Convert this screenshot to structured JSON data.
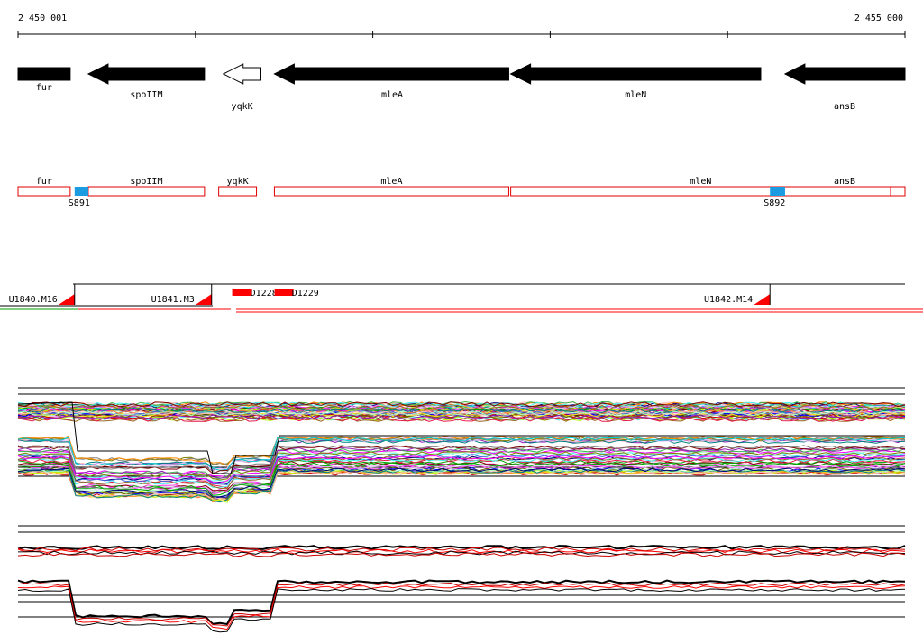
{
  "coordinates": {
    "start": "2 450 001",
    "end": "2 455 000",
    "start_bp": 2450001,
    "end_bp": 2455000
  },
  "genes": [
    {
      "name": "fur",
      "start": 2450001,
      "end": 2450295,
      "strand": "none"
    },
    {
      "name": "spoIIM",
      "start": 2450397,
      "end": 2451052,
      "strand": "-"
    },
    {
      "name": "yqkK",
      "start": 2451158,
      "end": 2451370,
      "strand": "-",
      "outline": true
    },
    {
      "name": "mleA",
      "start": 2451446,
      "end": 2452767,
      "strand": "-"
    },
    {
      "name": "mleN",
      "start": 2452778,
      "end": 2454187,
      "strand": "-"
    },
    {
      "name": "ansB",
      "start": 2454324,
      "end": 2455000,
      "strand": "-"
    }
  ],
  "annotation_boxes": [
    {
      "name": "fur",
      "start": 2450001,
      "end": 2450295
    },
    {
      "name": "spoIIM",
      "start": 2450397,
      "end": 2451052
    },
    {
      "name": "yqkK",
      "start": 2451132,
      "end": 2451345
    },
    {
      "name": "mleA",
      "start": 2451446,
      "end": 2452767
    },
    {
      "name": "mleN",
      "start": 2452778,
      "end": 2454919
    },
    {
      "name": "ansB",
      "start": 2454919,
      "end": 2455000
    }
  ],
  "sites": [
    {
      "label": "S891",
      "start": 2450320,
      "end": 2450397
    },
    {
      "label": "S892",
      "start": 2454239,
      "end": 2454324
    }
  ],
  "transcripts": [
    {
      "label": "U1840.M16",
      "end": 2450320
    },
    {
      "label": "U1841.M3",
      "end": 2451092
    },
    {
      "label": "U1842.M14",
      "end": 2454239
    }
  ],
  "red_features": [
    {
      "label": "D1228",
      "start": 2451208,
      "end": 2451320
    },
    {
      "label": "D1229",
      "start": 2451447,
      "end": 2451554
    }
  ],
  "colors": {
    "gene_fill": "#000000",
    "annotation_box": "#e00000",
    "site": "#1b9be0",
    "feature": "#ff0000",
    "green": "#00a000"
  }
}
